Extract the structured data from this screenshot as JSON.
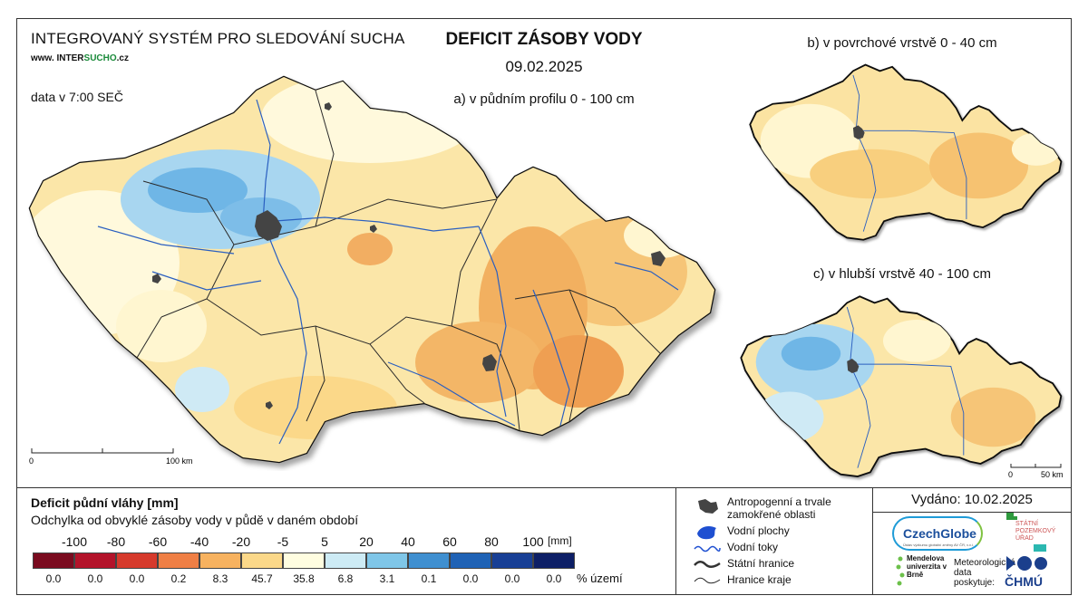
{
  "header": {
    "system_title": "INTEGROVANÝ SYSTÉM PRO SLEDOVÁNÍ SUCHA",
    "website_prefix": "www. INTER",
    "website_accent": "SUCHO",
    "website_suffix": ".cz",
    "data_time": "data v 7:00 SEČ",
    "main_title": "DEFICIT ZÁSOBY VODY",
    "date": "09.02.2025",
    "map_a_title": "a) v půdním profilu 0 - 100 cm",
    "map_b_title": "b) v povrchové vrstvě 0 - 40 cm",
    "map_c_title": "c) v hlubší vrstvě 40 - 100 cm"
  },
  "scales": {
    "main": {
      "zero": "0",
      "end": "100 km"
    },
    "small": {
      "zero": "0",
      "end": "50 km"
    }
  },
  "legend": {
    "title": "Deficit půdní vláhy  [mm]",
    "subtitle": "Odchylka od obvyklé zásoby vody v půdě v daném období",
    "ticks": [
      "-100",
      "-80",
      "-60",
      "-40",
      "-20",
      "-5",
      "5",
      "20",
      "40",
      "60",
      "80",
      "100"
    ],
    "unit": "[mm]",
    "classes": [
      {
        "color": "#7a0b1f",
        "percent": "0.0"
      },
      {
        "color": "#b3132a",
        "percent": "0.0"
      },
      {
        "color": "#d63a2c",
        "percent": "0.0"
      },
      {
        "color": "#ef7f45",
        "percent": "0.2"
      },
      {
        "color": "#f7b25f",
        "percent": "8.3"
      },
      {
        "color": "#fbd889",
        "percent": "45.7"
      },
      {
        "color": "#fffde0",
        "percent": "35.8"
      },
      {
        "color": "#cdebf5",
        "percent": "6.8"
      },
      {
        "color": "#7fc6e8",
        "percent": "3.1"
      },
      {
        "color": "#3f8fd0",
        "percent": "0.1"
      },
      {
        "color": "#1f62b5",
        "percent": "0.0"
      },
      {
        "color": "#183f95",
        "percent": "0.0"
      },
      {
        "color": "#0d1f66",
        "percent": "0.0"
      }
    ],
    "percent_unit": "% území"
  },
  "map_key": [
    {
      "icon": "urban-area-icon",
      "label": "Antropogenní a trvale zamokřené oblasti"
    },
    {
      "icon": "water-body-icon",
      "label": "Vodní plochy"
    },
    {
      "icon": "river-icon",
      "label": "Vodní toky"
    },
    {
      "icon": "state-border-icon",
      "label": "Státní hranice"
    },
    {
      "icon": "region-border-icon",
      "label": "Hranice kraje"
    }
  ],
  "footer": {
    "issued": "Vydáno: 10.02.2025",
    "provider_label": "Meteorologická data poskytuje:",
    "logo_czechglobe": "CzechGlobe",
    "logo_czechglobe_sub": "Ústav výzkumu globální změny AV ČR, v.v.i.",
    "logo_spu": "STÁTNÍ POZEMKOVÝ ÚŘAD",
    "logo_mendel": "Mendelova univerzita v Brně",
    "logo_chmu": "ČHMÚ"
  },
  "colors": {
    "country_fill": "#fbe6a8",
    "wet_fill": "#8cc8ec",
    "dry_fill": "#f4b86a",
    "river": "#2a5fc0",
    "urban": "#444444"
  }
}
